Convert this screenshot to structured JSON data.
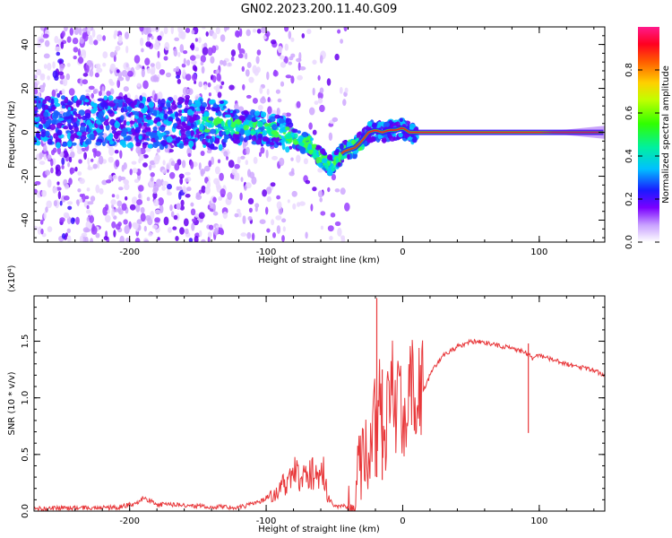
{
  "figure": {
    "title": "GN02.2023.200.11.40.G09"
  },
  "chart_data": [
    {
      "type": "heatmap",
      "xlabel": "Height of straight line (km)",
      "ylabel": "Frequency (Hz)",
      "xlim": [
        -270,
        148
      ],
      "ylim": [
        -50,
        48
      ],
      "xticks": [
        -200,
        -100,
        0,
        100
      ],
      "yticks": [
        -40,
        -20,
        0,
        20,
        40
      ],
      "colorbar": {
        "label": "Normalized spectral amplitude",
        "range": [
          0.0,
          1.0
        ],
        "ticks": [
          0.0,
          0.2,
          0.4,
          0.6,
          0.8
        ]
      },
      "frequency_trace": {
        "x": [
          -270,
          -230,
          -200,
          -180,
          -150,
          -130,
          -110,
          -95,
          -85,
          -75,
          -68,
          -62,
          -56,
          -52,
          -48,
          -44,
          -40,
          -35,
          -30,
          -25,
          -20,
          -15,
          -10,
          -5,
          0,
          5,
          10,
          20,
          40,
          80,
          120,
          148
        ],
        "y": [
          5,
          5,
          5,
          4,
          4,
          3,
          2,
          1,
          -1,
          -4,
          -6,
          -10,
          -14,
          -16,
          -12,
          -9,
          -8,
          -7,
          -4,
          0,
          1,
          0,
          1,
          1,
          2,
          0,
          0,
          0,
          0,
          0,
          0,
          0
        ]
      }
    },
    {
      "type": "line",
      "xlabel": "Height of straight line (km)",
      "ylabel": "SNR (10 * v/v)",
      "y_multiplier": "(x10⁴)",
      "xlim": [
        -270,
        148
      ],
      "ylim": [
        0,
        1.9
      ],
      "xticks": [
        -200,
        -100,
        0,
        100
      ],
      "yticks": [
        0.0,
        0.5,
        1.0,
        1.5
      ],
      "series": [
        {
          "color": "#e8373a",
          "x": [
            -270,
            -240,
            -210,
            -195,
            -190,
            -180,
            -160,
            -140,
            -120,
            -105,
            -95,
            -88,
            -82,
            -78,
            -74,
            -70,
            -66,
            -62,
            -58,
            -55,
            -52,
            -48,
            -44,
            -40,
            -36,
            -32,
            -28,
            -25,
            -22,
            -19,
            -17,
            -15,
            -12,
            -8,
            -5,
            -2,
            0,
            5,
            10,
            15,
            20,
            25,
            30,
            40,
            50,
            60,
            70,
            80,
            90,
            95,
            100,
            110,
            120,
            130,
            140,
            148
          ],
          "y": [
            0.02,
            0.03,
            0.03,
            0.07,
            0.12,
            0.06,
            0.05,
            0.04,
            0.03,
            0.08,
            0.14,
            0.22,
            0.3,
            0.34,
            0.28,
            0.36,
            0.33,
            0.27,
            0.38,
            0.12,
            0.07,
            0.04,
            0.06,
            0.03,
            0.1,
            0.35,
            0.6,
            0.42,
            0.95,
            0.6,
            1.05,
            0.55,
            0.78,
            1.08,
            0.9,
            1.05,
            0.88,
            1.0,
            1.15,
            1.05,
            1.2,
            1.3,
            1.38,
            1.45,
            1.5,
            1.49,
            1.46,
            1.44,
            1.4,
            1.35,
            1.37,
            1.34,
            1.3,
            1.27,
            1.24,
            1.2
          ]
        }
      ],
      "spikes": [
        {
          "x": -19,
          "y": 1.88
        },
        {
          "x": -15,
          "y": 1.25
        },
        {
          "x": 92,
          "y": 1.48
        }
      ]
    }
  ]
}
